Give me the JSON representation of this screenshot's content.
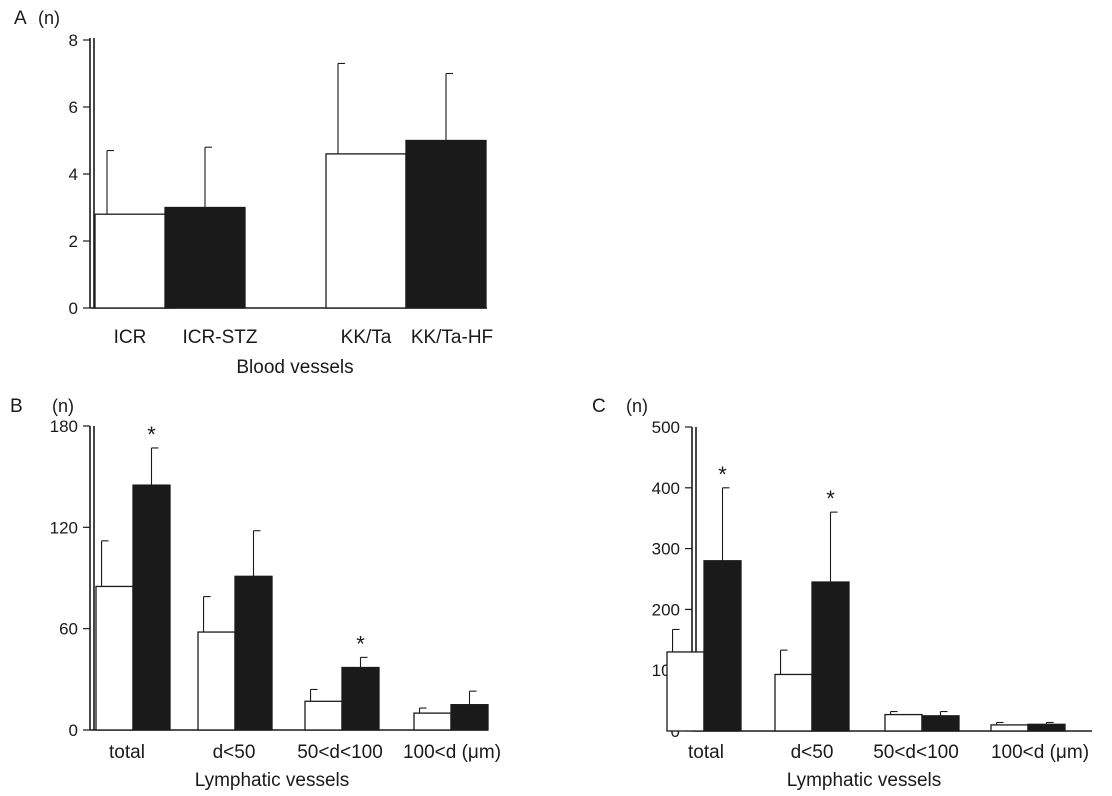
{
  "chart_data": [
    {
      "id": "A",
      "panel_label": "A",
      "type": "bar",
      "unit_label": "(n)",
      "xlabel": "Blood vessels",
      "ylim": [
        0,
        8
      ],
      "yticks": [
        0,
        2,
        4,
        6,
        8
      ],
      "bars": [
        {
          "label": "ICR",
          "value": 2.8,
          "error": 1.9,
          "fill": "open"
        },
        {
          "label": "ICR-STZ",
          "value": 3.0,
          "error": 1.8,
          "fill": "solid"
        },
        {
          "label": "KK/Ta",
          "value": 4.6,
          "error": 2.7,
          "fill": "open"
        },
        {
          "label": "KK/Ta-HF",
          "value": 5.0,
          "error": 2.0,
          "fill": "solid"
        }
      ]
    },
    {
      "id": "B",
      "panel_label": "B",
      "type": "bar",
      "unit_label": "(n)",
      "xlabel": "Lymphatic vessels",
      "ylim": [
        0,
        180
      ],
      "yticks": [
        0,
        60,
        120,
        180
      ],
      "categories": [
        "total",
        "d<50",
        "50<d<100",
        "100<d (μm)"
      ],
      "series": [
        {
          "fill": "open",
          "values": [
            85,
            58,
            17,
            10
          ],
          "errors": [
            27,
            21,
            7,
            3
          ]
        },
        {
          "fill": "solid",
          "values": [
            145,
            91,
            37,
            15
          ],
          "errors": [
            22,
            27,
            6,
            8
          ]
        }
      ],
      "significant": [
        [
          false,
          false,
          false,
          false
        ],
        [
          true,
          false,
          true,
          false
        ]
      ]
    },
    {
      "id": "C",
      "panel_label": "C",
      "type": "bar",
      "unit_label": "(n)",
      "xlabel": "Lymphatic vessels",
      "ylim": [
        0,
        500
      ],
      "yticks": [
        0,
        100,
        200,
        300,
        400,
        500
      ],
      "categories": [
        "total",
        "d<50",
        "50<d<100",
        "100<d (μm)"
      ],
      "series": [
        {
          "fill": "open",
          "values": [
            130,
            93,
            27,
            10
          ],
          "errors": [
            37,
            40,
            5,
            4
          ]
        },
        {
          "fill": "solid",
          "values": [
            280,
            245,
            25,
            11
          ],
          "errors": [
            120,
            115,
            7,
            3
          ]
        }
      ],
      "significant": [
        [
          false,
          false,
          false,
          false
        ],
        [
          true,
          true,
          false,
          false
        ]
      ]
    }
  ]
}
